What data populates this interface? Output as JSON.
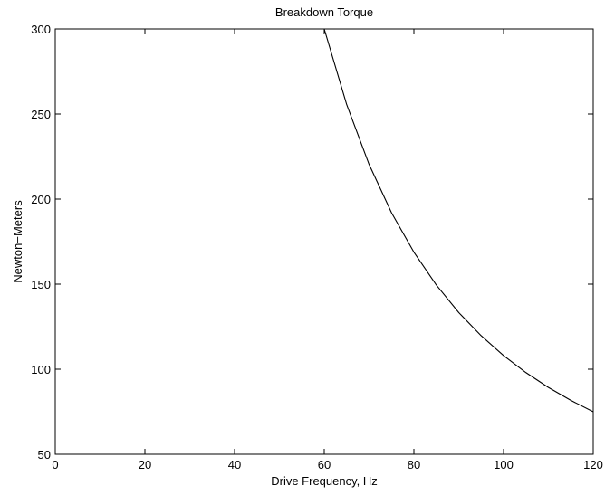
{
  "chart_data": {
    "type": "line",
    "title": "Breakdown Torque",
    "xlabel": "Drive Frequency, Hz",
    "ylabel": "Newton−Meters",
    "xlim": [
      0,
      120
    ],
    "ylim": [
      50,
      300
    ],
    "xticks": [
      0,
      20,
      40,
      60,
      80,
      100,
      120
    ],
    "yticks": [
      50,
      100,
      150,
      200,
      250,
      300
    ],
    "grid": false,
    "series": [
      {
        "color": "#000000",
        "x": [
          0,
          10,
          20,
          30,
          40,
          50,
          60,
          65,
          70,
          75,
          80,
          85,
          90,
          95,
          100,
          105,
          110,
          115,
          120
        ],
        "values": [
          300,
          300,
          300,
          300,
          300,
          300,
          300,
          255.6,
          220.4,
          192.0,
          168.8,
          149.5,
          133.3,
          119.7,
          108.0,
          98.0,
          89.3,
          81.7,
          75.0
        ]
      }
    ]
  }
}
